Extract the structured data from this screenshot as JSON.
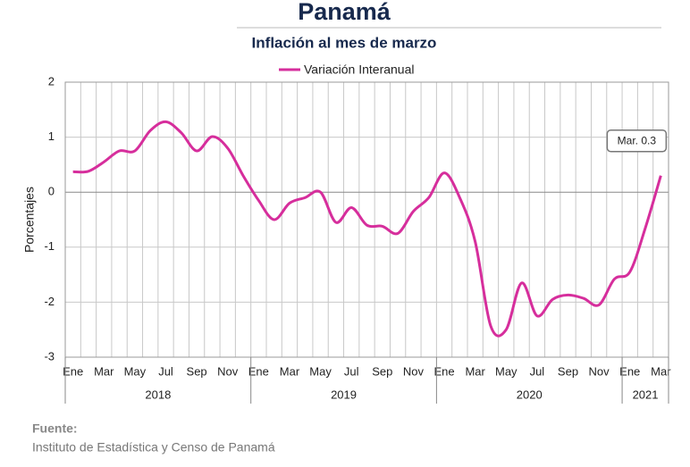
{
  "chart_data": {
    "type": "line",
    "title": "Panamá",
    "subtitle": "Inflación al mes de marzo",
    "y_label": "Porcentajes",
    "categories": [
      "Ene",
      null,
      "Mar",
      null,
      "May",
      null,
      "Jul",
      null,
      "Sep",
      null,
      "Nov",
      null,
      "Ene",
      null,
      "Mar",
      null,
      "May",
      null,
      "Jul",
      null,
      "Sep",
      null,
      "Nov",
      null,
      "Ene",
      null,
      "Mar",
      null,
      "May",
      null,
      "Jul",
      null,
      "Sep",
      null,
      "Nov",
      null,
      "Ene",
      null,
      "Mar"
    ],
    "years": [
      "2018",
      "2019",
      "2020",
      "2021"
    ],
    "series": [
      {
        "name": "Variación Interanual",
        "color": "#d62e9c",
        "values": [
          0.37,
          0.38,
          0.55,
          0.75,
          0.75,
          1.12,
          1.28,
          1.08,
          0.75,
          1.01,
          0.8,
          0.3,
          -0.15,
          -0.5,
          -0.2,
          -0.1,
          0.0,
          -0.55,
          -0.28,
          -0.6,
          -0.62,
          -0.75,
          -0.35,
          -0.1,
          0.35,
          -0.1,
          -0.9,
          -2.43,
          -2.5,
          -1.65,
          -2.25,
          -1.95,
          -1.87,
          -1.93,
          -2.05,
          -1.58,
          -1.45,
          -0.65,
          0.3
        ]
      }
    ],
    "ylim": [
      -3,
      2
    ],
    "yticks": [
      -3,
      -2,
      -1,
      0,
      1,
      2
    ],
    "grid": true,
    "annotation": "Mar. 0.3",
    "source_label": "Fuente:",
    "source": "Instituto de Estadística y Censo de Panamá"
  }
}
